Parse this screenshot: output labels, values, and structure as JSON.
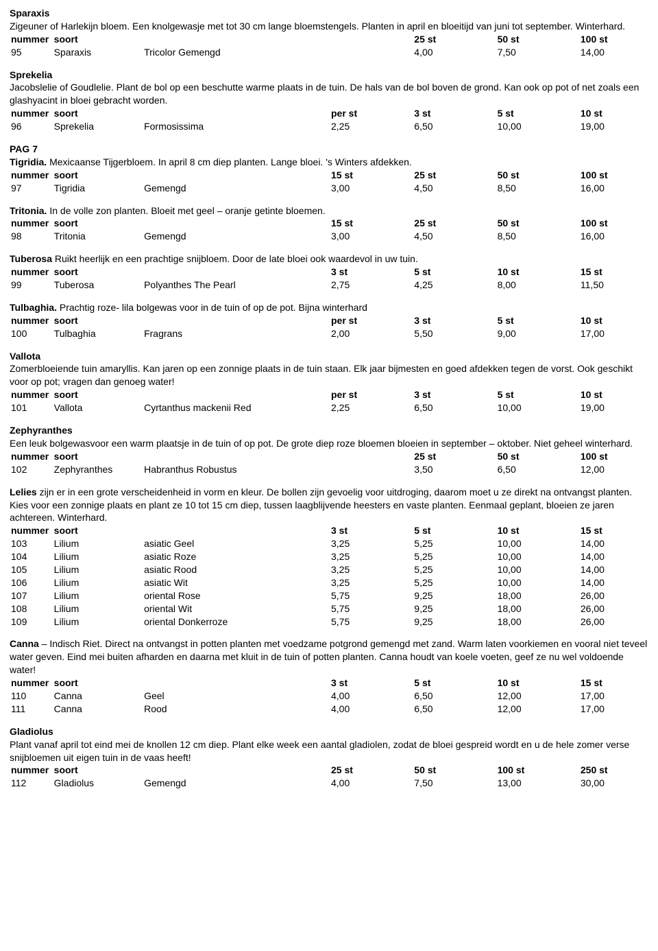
{
  "text_color": "#000000",
  "background_color": "#ffffff",
  "font_family": "Arial",
  "base_fontsize_pt": 11,
  "labels": {
    "nummer": "nummer",
    "soort": "soort"
  },
  "sections": [
    {
      "title": "Sparaxis",
      "desc": "Zigeuner of Harlekijn bloem. Een knolgewasje met tot 30 cm lange bloemstengels. Planten in april en bloeitijd van juni tot september. Winterhard.",
      "header_cols": [
        "25 st",
        "50 st",
        "100 st"
      ],
      "col_count": 3,
      "rows": [
        {
          "num": "95",
          "soort": "Sparaxis",
          "var": "Tricolor Gemengd",
          "p": [
            "4,00",
            "7,50",
            "14,00"
          ]
        }
      ]
    },
    {
      "title": "Sprekelia",
      "desc": "Jacobslelie of Goudlelie. Plant de bol op een beschutte warme plaats in de tuin. De hals van de bol boven de grond. Kan ook op pot of net zoals een glashyacint in bloei gebracht worden.",
      "header_cols": [
        "per st",
        "3 st",
        "5 st",
        "10 st"
      ],
      "col_count": 4,
      "rows": [
        {
          "num": "96",
          "soort": "Sprekelia",
          "var": "Formosissima",
          "p": [
            "2,25",
            "6,50",
            "10,00",
            "19,00"
          ]
        }
      ]
    },
    {
      "page_marker": "PAG 7",
      "inline_title": "Tigridia.",
      "inline_desc": " Mexicaanse Tijgerbloem. In april 8 cm diep planten. Lange bloei. 's Winters afdekken.",
      "header_cols": [
        "15 st",
        "25 st",
        "50 st",
        "100 st"
      ],
      "col_count": 4,
      "rows": [
        {
          "num": "97",
          "soort": "Tigridia",
          "var": "Gemengd",
          "p": [
            "3,00",
            "4,50",
            "8,50",
            "16,00"
          ]
        }
      ]
    },
    {
      "inline_title": "Tritonia.",
      "inline_desc": " In de volle zon planten. Bloeit met geel – oranje getinte bloemen.",
      "header_cols": [
        "15 st",
        "25 st",
        "50 st",
        "100 st"
      ],
      "col_count": 4,
      "rows": [
        {
          "num": "98",
          "soort": "Tritonia",
          "var": "Gemengd",
          "p": [
            "3,00",
            "4,50",
            "8,50",
            "16,00"
          ]
        }
      ]
    },
    {
      "inline_title": "Tuberosa",
      "inline_desc": " Ruikt heerlijk en een prachtige snijbloem. Door de late bloei ook waardevol in uw tuin.",
      "header_cols": [
        "3 st",
        "5 st",
        "10 st",
        "15 st"
      ],
      "col_count": 4,
      "rows": [
        {
          "num": "99",
          "soort": "Tuberosa",
          "var": "Polyanthes The Pearl",
          "p": [
            "2,75",
            "4,25",
            "8,00",
            "11,50"
          ]
        }
      ]
    },
    {
      "inline_title": "Tulbaghia.",
      "inline_desc": " Prachtig roze- lila bolgewas voor in de tuin of op de pot. Bijna winterhard",
      "header_cols": [
        "per st",
        "3 st",
        "5 st",
        "10 st"
      ],
      "col_count": 4,
      "rows": [
        {
          "num": "100",
          "soort": "Tulbaghia",
          "var": "Fragrans",
          "p": [
            "2,00",
            "5,50",
            "9,00",
            "17,00"
          ]
        }
      ]
    },
    {
      "title": "Vallota",
      "desc": "Zomerbloeiende tuin amaryllis. Kan jaren op een zonnige plaats in de tuin staan. Elk jaar bijmesten en goed afdekken tegen de vorst. Ook geschikt voor op pot; vragen dan genoeg water!",
      "header_cols": [
        "per st",
        "3 st",
        "5 st",
        "10 st"
      ],
      "col_count": 4,
      "rows": [
        {
          "num": "101",
          "soort": "Vallota",
          "var": "Cyrtanthus mackenii Red",
          "p": [
            "2,25",
            "6,50",
            "10,00",
            "19,00"
          ]
        }
      ]
    },
    {
      "title": "Zephyranthes",
      "desc": "Een leuk bolgewasvoor een warm plaatsje in de tuin of op pot. De grote diep roze bloemen bloeien in september – oktober. Niet geheel winterhard.",
      "header_cols": [
        "25 st",
        "50 st",
        "100 st"
      ],
      "col_count": 3,
      "rows": [
        {
          "num": "102",
          "soort": "Zephyranthes",
          "var": "Habranthus Robustus",
          "p": [
            "3,50",
            "6,50",
            "12,00"
          ]
        }
      ]
    },
    {
      "inline_title": "Lelies",
      "inline_desc": " zijn er in een grote verscheidenheid in vorm en kleur. De bollen zijn gevoelig voor uitdroging, daarom moet u ze direkt na ontvangst planten. Kies voor een zonnige plaats en plant ze 10 tot 15 cm diep, tussen laagblijvende heesters en vaste planten. Eenmaal geplant, bloeien ze jaren achtereen. Winterhard.",
      "header_cols": [
        "3 st",
        "5 st",
        "10 st",
        "15 st"
      ],
      "col_count": 4,
      "rows": [
        {
          "num": "103",
          "soort": "Lilium",
          "var": "asiatic Geel",
          "p": [
            "3,25",
            "5,25",
            "10,00",
            "14,00"
          ]
        },
        {
          "num": "104",
          "soort": "Lilium",
          "var": "asiatic Roze",
          "p": [
            "3,25",
            "5,25",
            "10,00",
            "14,00"
          ]
        },
        {
          "num": "105",
          "soort": "Lilium",
          "var": "asiatic Rood",
          "p": [
            "3,25",
            "5,25",
            "10,00",
            "14,00"
          ]
        },
        {
          "num": "106",
          "soort": "Lilium",
          "var": "asiatic Wit",
          "p": [
            "3,25",
            "5,25",
            "10,00",
            "14,00"
          ]
        },
        {
          "num": "107",
          "soort": "Lilium",
          "var": "oriental Rose",
          "p": [
            "5,75",
            "9,25",
            "18,00",
            "26,00"
          ]
        },
        {
          "num": "108",
          "soort": "Lilium",
          "var": "oriental Wit",
          "p": [
            "5,75",
            "9,25",
            "18,00",
            "26,00"
          ]
        },
        {
          "num": "109",
          "soort": "Lilium",
          "var": "oriental Donkerroze",
          "p": [
            "5,75",
            "9,25",
            "18,00",
            "26,00"
          ]
        }
      ]
    },
    {
      "inline_title": "Canna",
      "inline_desc": " – Indisch Riet. Direct na ontvangst in potten planten met voedzame potgrond gemengd met zand. Warm laten voorkiemen en vooral niet teveel water geven. Eind mei buiten afharden en daarna met kluit in de tuin of potten planten. Canna houdt van koele voeten, geef ze nu wel voldoende water!",
      "header_cols": [
        "3 st",
        "5 st",
        "10 st",
        "15 st"
      ],
      "col_count": 4,
      "rows": [
        {
          "num": "110",
          "soort": "Canna",
          "var": "Geel",
          "p": [
            "4,00",
            "6,50",
            "12,00",
            "17,00"
          ]
        },
        {
          "num": "111",
          "soort": "Canna",
          "var": "Rood",
          "p": [
            "4,00",
            "6,50",
            "12,00",
            "17,00"
          ]
        }
      ]
    },
    {
      "title": "Gladiolus",
      "desc": "Plant vanaf april tot eind mei de knollen 12 cm diep. Plant elke week een aantal gladiolen, zodat de bloei gespreid wordt en u de hele zomer verse snijbloemen uit eigen tuin in de vaas heeft!",
      "header_cols": [
        "25 st",
        "50 st",
        "100 st",
        "250 st"
      ],
      "col_count": 4,
      "rows": [
        {
          "num": "112",
          "soort": "Gladiolus",
          "var": "Gemengd",
          "p": [
            "4,00",
            "7,50",
            "13,00",
            "30,00"
          ]
        }
      ]
    }
  ]
}
